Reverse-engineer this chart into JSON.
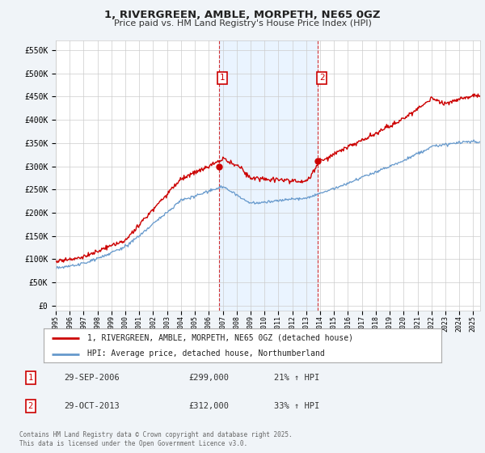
{
  "title": "1, RIVERGREEN, AMBLE, MORPETH, NE65 0GZ",
  "subtitle": "Price paid vs. HM Land Registry's House Price Index (HPI)",
  "ylabel_ticks": [
    "£0",
    "£50K",
    "£100K",
    "£150K",
    "£200K",
    "£250K",
    "£300K",
    "£350K",
    "£400K",
    "£450K",
    "£500K",
    "£550K"
  ],
  "ytick_values": [
    0,
    50000,
    100000,
    150000,
    200000,
    250000,
    300000,
    350000,
    400000,
    450000,
    500000,
    550000
  ],
  "ylim": [
    -10000,
    570000
  ],
  "sale1_x": 2006.75,
  "sale2_x": 2013.83,
  "sale1_y": 299000,
  "sale2_y": 312000,
  "property_color": "#cc0000",
  "hpi_color": "#6699cc",
  "property_label": "1, RIVERGREEN, AMBLE, MORPETH, NE65 0GZ (detached house)",
  "hpi_label": "HPI: Average price, detached house, Northumberland",
  "footer": "Contains HM Land Registry data © Crown copyright and database right 2025.\nThis data is licensed under the Open Government Licence v3.0.",
  "table_rows": [
    {
      "num": "1",
      "date": "29-SEP-2006",
      "price": "£299,000",
      "hpi": "21% ↑ HPI"
    },
    {
      "num": "2",
      "date": "29-OCT-2013",
      "price": "£312,000",
      "hpi": "33% ↑ HPI"
    }
  ],
  "background_color": "#f0f4f8",
  "plot_bg_color": "#ffffff",
  "xmin": 1995,
  "xmax": 2025.5,
  "span_color": "#ddeeff"
}
